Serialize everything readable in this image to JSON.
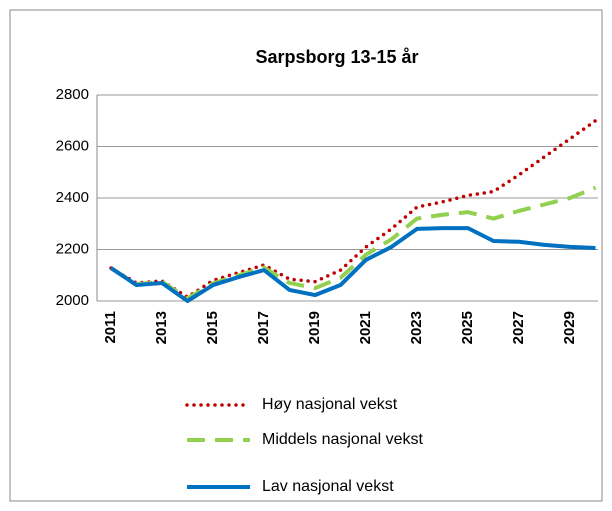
{
  "chart_data": {
    "type": "line",
    "title": "Sarpsborg 13-15 år",
    "categories": [
      "2011",
      null,
      "2013",
      null,
      "2015",
      null,
      "2017",
      null,
      "2019",
      null,
      "2021",
      null,
      "2023",
      null,
      "2025",
      null,
      "2027",
      null,
      "2029",
      null
    ],
    "series": [
      {
        "name": "Høy nasjonal vekst",
        "color": "#c00000",
        "style": "dotted",
        "values": [
          2128,
          2070,
          2078,
          2015,
          2080,
          2110,
          2140,
          2085,
          2075,
          2120,
          2210,
          2280,
          2365,
          2385,
          2410,
          2425,
          2490,
          2560,
          2630,
          2700
        ]
      },
      {
        "name": "Middels nasjonal vekst",
        "color": "#92d050",
        "style": "dashed",
        "values": [
          2128,
          2065,
          2075,
          2010,
          2068,
          2100,
          2130,
          2070,
          2050,
          2090,
          2180,
          2240,
          2320,
          2335,
          2345,
          2320,
          2350,
          2375,
          2400,
          2440
        ]
      },
      {
        "name": "Lav nasjonal vekst",
        "color": "#0070c0",
        "style": "solid",
        "values": [
          2128,
          2062,
          2070,
          2000,
          2062,
          2093,
          2120,
          2043,
          2023,
          2062,
          2160,
          2210,
          2280,
          2283,
          2283,
          2233,
          2230,
          2218,
          2210,
          2206
        ]
      }
    ],
    "ylim": [
      2000,
      2800
    ],
    "yticks": [
      2000,
      2200,
      2400,
      2600,
      2800
    ],
    "grid": true
  }
}
